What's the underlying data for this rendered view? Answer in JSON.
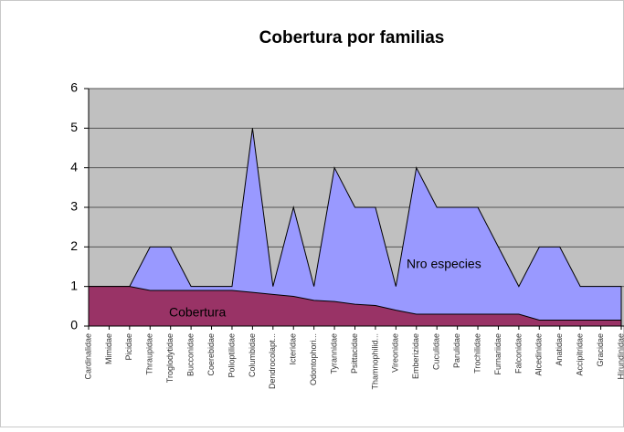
{
  "chart_data": {
    "type": "area",
    "title": "Cobertura por familias",
    "categories": [
      "Cardinalidae",
      "Mimidae",
      "Picidae",
      "Thraupidae",
      "Troglodytidae",
      "Bucconidae",
      "Coerebidae",
      "Polioptilidae",
      "Columbidae",
      "Dendrocolapt...",
      "Icteridae",
      "Odontophori...",
      "Tyrannidae",
      "Psittacidae",
      "Thamnophilid...",
      "Vireonidae",
      "Emberizidae",
      "Cuculidae",
      "Parulidae",
      "Trochilidae",
      "Furnariidae",
      "Falconidae",
      "Alcedinidae",
      "Anatidae",
      "Accipitridae",
      "Gracidae",
      "Hirundinidae"
    ],
    "series": [
      {
        "name": "Nro especies",
        "color": "#9999ff",
        "values": [
          1,
          1,
          1,
          2,
          2,
          1,
          1,
          1,
          5,
          1,
          3,
          1,
          4,
          3,
          3,
          1,
          4,
          3,
          3,
          3,
          2,
          1,
          2,
          2,
          1,
          1,
          1
        ]
      },
      {
        "name": "Cobertura",
        "color": "#993366",
        "values": [
          1,
          1,
          1,
          0.9,
          0.9,
          0.9,
          0.9,
          0.9,
          0.85,
          0.8,
          0.75,
          0.65,
          0.62,
          0.55,
          0.52,
          0.4,
          0.3,
          0.3,
          0.3,
          0.3,
          0.3,
          0.3,
          0.15,
          0.15,
          0.15,
          0.15,
          0.15
        ]
      }
    ],
    "ylim": [
      0,
      6
    ],
    "yticks": [
      0,
      1,
      2,
      3,
      4,
      5,
      6
    ],
    "grid": true,
    "plot_background": "#c0c0c0"
  }
}
